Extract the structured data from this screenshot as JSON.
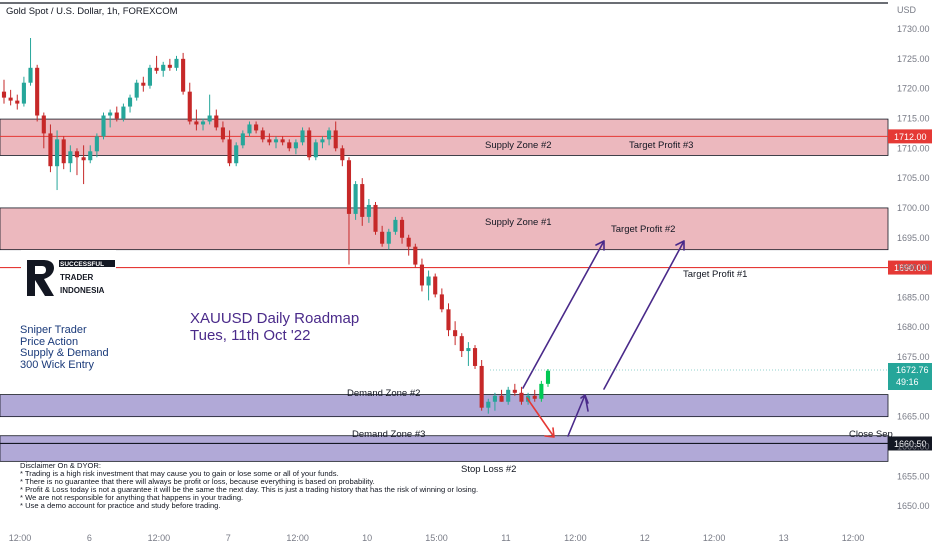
{
  "symbol_title": "Gold Spot / U.S. Dollar, 1h, FOREXCOM",
  "currency": "USD",
  "chart_data": {
    "type": "candlestick",
    "price_axis_ticks": [
      1730,
      1725,
      1720,
      1715,
      1710,
      1705,
      1700,
      1695,
      1690,
      1685,
      1680,
      1675,
      1670,
      1665,
      1660,
      1655,
      1650
    ],
    "price_axis_labels": [
      "1730.00",
      "1725.00",
      "1720.00",
      "1715.00",
      "1710.00",
      "1705.00",
      "1700.00",
      "1695.00",
      "1690.00",
      "1685.00",
      "1680.00",
      "1675.00",
      "1670.00",
      "1665.00",
      "1660.00",
      "1655.00",
      "1650.00"
    ],
    "time_axis_labels": [
      "12:00",
      "6",
      "12:00",
      "7",
      "12:00",
      "10",
      "15:00",
      "11",
      "12:00",
      "12",
      "12:00",
      "13",
      "12:00"
    ],
    "ylim": [
      1647.5,
      1734.2
    ],
    "candles": [
      [
        1719.5,
        1721.5,
        1717.5,
        1718.5
      ],
      [
        1718.5,
        1719.8,
        1717.2,
        1718.0
      ],
      [
        1718.0,
        1719.0,
        1716.5,
        1717.5
      ],
      [
        1717.5,
        1722.0,
        1717.0,
        1721.0
      ],
      [
        1721.0,
        1728.5,
        1720.5,
        1723.5
      ],
      [
        1723.5,
        1724.0,
        1714.5,
        1715.5
      ],
      [
        1715.5,
        1716.0,
        1710.0,
        1712.5
      ],
      [
        1712.5,
        1714.0,
        1706.0,
        1707.0
      ],
      [
        1707.0,
        1713.0,
        1703.0,
        1711.5
      ],
      [
        1711.5,
        1712.0,
        1706.5,
        1707.5
      ],
      [
        1707.5,
        1710.5,
        1706.0,
        1709.5
      ],
      [
        1709.5,
        1710.0,
        1705.5,
        1708.5
      ],
      [
        1708.5,
        1710.5,
        1704.0,
        1708.0
      ],
      [
        1708.0,
        1710.5,
        1707.5,
        1709.5
      ],
      [
        1709.5,
        1712.5,
        1708.5,
        1712.0
      ],
      [
        1712.0,
        1716.0,
        1711.5,
        1715.5
      ],
      [
        1715.5,
        1716.5,
        1713.5,
        1716.0
      ],
      [
        1716.0,
        1717.0,
        1714.5,
        1715.0
      ],
      [
        1715.0,
        1717.5,
        1714.5,
        1717.0
      ],
      [
        1717.0,
        1719.0,
        1716.0,
        1718.5
      ],
      [
        1718.5,
        1721.5,
        1718.0,
        1721.0
      ],
      [
        1721.0,
        1722.0,
        1719.5,
        1720.5
      ],
      [
        1720.5,
        1724.0,
        1720.0,
        1723.5
      ],
      [
        1723.5,
        1725.5,
        1722.5,
        1723.0
      ],
      [
        1723.0,
        1724.5,
        1722.0,
        1724.0
      ],
      [
        1724.0,
        1725.0,
        1723.0,
        1723.5
      ],
      [
        1723.5,
        1725.5,
        1723.0,
        1725.0
      ],
      [
        1725.0,
        1726.0,
        1719.0,
        1719.5
      ],
      [
        1719.5,
        1721.0,
        1714.0,
        1714.5
      ],
      [
        1714.5,
        1716.5,
        1713.0,
        1714.0
      ],
      [
        1714.0,
        1715.0,
        1713.0,
        1714.5
      ],
      [
        1714.5,
        1719.0,
        1714.0,
        1715.5
      ],
      [
        1715.5,
        1716.5,
        1713.0,
        1713.5
      ],
      [
        1713.5,
        1714.5,
        1711.0,
        1711.5
      ],
      [
        1711.5,
        1713.0,
        1707.0,
        1707.5
      ],
      [
        1707.5,
        1711.0,
        1707.0,
        1710.5
      ],
      [
        1710.5,
        1713.0,
        1710.0,
        1712.5
      ],
      [
        1712.5,
        1714.5,
        1712.0,
        1714.0
      ],
      [
        1714.0,
        1714.5,
        1712.5,
        1713.0
      ],
      [
        1713.0,
        1713.5,
        1711.0,
        1711.5
      ],
      [
        1711.5,
        1712.5,
        1710.5,
        1711.0
      ],
      [
        1711.0,
        1712.0,
        1710.0,
        1711.5
      ],
      [
        1711.5,
        1712.0,
        1710.5,
        1711.0
      ],
      [
        1711.0,
        1711.5,
        1709.5,
        1710.0
      ],
      [
        1710.0,
        1711.5,
        1709.0,
        1711.0
      ],
      [
        1711.0,
        1713.5,
        1710.5,
        1713.0
      ],
      [
        1713.0,
        1713.5,
        1708.0,
        1708.5
      ],
      [
        1708.5,
        1711.5,
        1708.0,
        1711.0
      ],
      [
        1711.0,
        1712.0,
        1710.0,
        1711.5
      ],
      [
        1711.5,
        1713.5,
        1710.5,
        1713.0
      ],
      [
        1713.0,
        1714.5,
        1709.5,
        1710.0
      ],
      [
        1710.0,
        1710.5,
        1707.0,
        1708.0
      ],
      [
        1708.0,
        1708.5,
        1690.5,
        1699.0
      ],
      [
        1699.0,
        1704.5,
        1698.0,
        1704.0
      ],
      [
        1704.0,
        1705.0,
        1697.0,
        1698.5
      ],
      [
        1698.5,
        1701.5,
        1697.5,
        1700.5
      ],
      [
        1700.5,
        1701.0,
        1695.5,
        1696.0
      ],
      [
        1696.0,
        1697.0,
        1693.5,
        1694.0
      ],
      [
        1694.0,
        1696.5,
        1693.0,
        1696.0
      ],
      [
        1696.0,
        1698.5,
        1695.5,
        1698.0
      ],
      [
        1698.0,
        1698.5,
        1694.0,
        1695.0
      ],
      [
        1695.0,
        1695.5,
        1692.0,
        1693.5
      ],
      [
        1693.5,
        1694.0,
        1690.0,
        1690.5
      ],
      [
        1690.5,
        1691.5,
        1686.0,
        1687.0
      ],
      [
        1687.0,
        1689.5,
        1684.5,
        1688.5
      ],
      [
        1688.5,
        1689.0,
        1685.0,
        1685.5
      ],
      [
        1685.5,
        1686.5,
        1682.5,
        1683.0
      ],
      [
        1683.0,
        1684.0,
        1678.5,
        1679.5
      ],
      [
        1679.5,
        1681.0,
        1677.0,
        1678.5
      ],
      [
        1678.5,
        1679.0,
        1675.0,
        1676.0
      ],
      [
        1676.0,
        1677.5,
        1673.5,
        1676.5
      ],
      [
        1676.5,
        1677.0,
        1673.0,
        1673.5
      ],
      [
        1673.5,
        1674.5,
        1666.0,
        1666.5
      ],
      [
        1666.5,
        1668.0,
        1665.5,
        1667.5
      ],
      [
        1667.5,
        1669.0,
        1666.0,
        1668.5
      ],
      [
        1668.5,
        1669.5,
        1667.5,
        1667.5
      ],
      [
        1667.5,
        1670.0,
        1667.0,
        1669.5
      ],
      [
        1669.5,
        1670.5,
        1668.5,
        1669.0
      ],
      [
        1669.0,
        1670.0,
        1667.0,
        1667.5
      ],
      [
        1667.5,
        1669.0,
        1667.0,
        1668.5
      ],
      [
        1668.5,
        1669.5,
        1667.5,
        1668.0
      ],
      [
        1668.0,
        1671.0,
        1667.5,
        1670.5
      ],
      [
        1670.5,
        1673.0,
        1670.0,
        1672.7
      ]
    ],
    "zones": [
      {
        "name": "Supply Zone #2",
        "top": 1714.9,
        "bottom": 1708.8
      },
      {
        "name": "Supply Zone #1",
        "top": 1700.0,
        "bottom": 1693.0
      },
      {
        "name": "Demand Zone #2",
        "top": 1668.7,
        "bottom": 1665.0
      },
      {
        "name": "Demand Zone #3",
        "top": 1661.8,
        "bottom": 1657.5
      }
    ],
    "horizontal_levels": [
      {
        "price": 1712.0,
        "label": "1712.00",
        "color": "#e53935"
      },
      {
        "price": 1690.0,
        "label": "1690.00",
        "color": "#e53935"
      },
      {
        "price": 1660.5,
        "label": "1660.50",
        "color": "#131722"
      }
    ],
    "annotations": {
      "target_profit_1": "Target Profit #1",
      "target_profit_2": "Target Profit #2",
      "target_profit_3": "Target Profit #3",
      "stop_loss_2": "Stop Loss #2",
      "close_sep": "Close Sep"
    },
    "current_price": "1672.76",
    "countdown": "49:16"
  },
  "colors": {
    "bull": "#26a69a",
    "bull_bright": "#00c853",
    "bear": "#c62828",
    "supply_zone": "#e6a0a8",
    "demand_zone": "#a39ad0",
    "arrow": "#4a2a8a",
    "stop_arrow": "#e53935"
  },
  "overlay": {
    "roadmap_line1": "XAUUSD Daily Roadmap",
    "roadmap_line2": "Tues, 11th Oct '22",
    "strategy": [
      "Sniper Trader",
      "Price Action",
      "Supply & Demand",
      "300 Wick Entry"
    ],
    "logo_top": "SUCCESSFUL",
    "logo_mid": "TRADER",
    "logo_bot": "INDONESIA"
  },
  "disclaimer": [
    "Disclaimer On & DYOR:",
    "* Trading is a high risk investment that may cause you to gain or lose some or all of your funds.",
    "* There is no guarantee that there will always be profit or loss, because everything is based on probability.",
    "* Profit & Loss today is not a guarantee it will be the same the next day. This is just a trading history that has the risk of winning or losing.",
    "* We are not responsible for anything that happens in your trading.",
    "* Use a demo account for practice and study before trading."
  ]
}
